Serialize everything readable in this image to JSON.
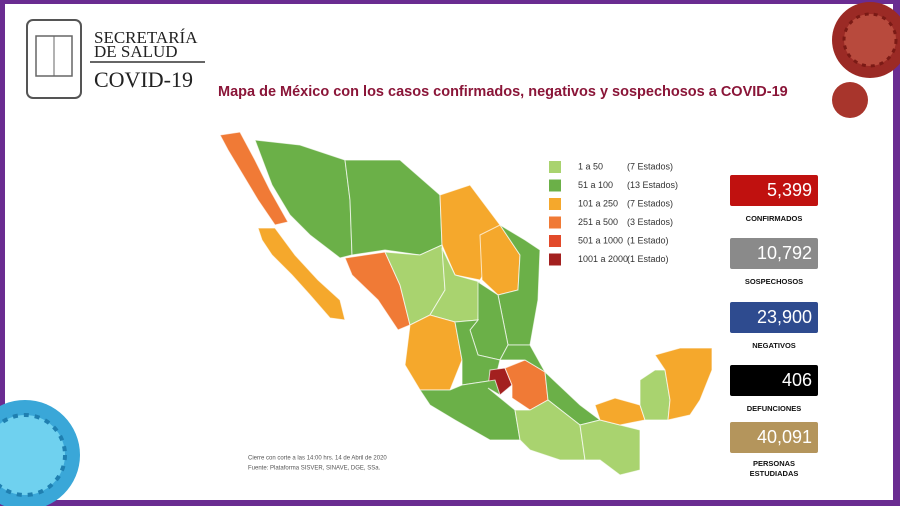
{
  "header": {
    "line1": "SECRETARÍA",
    "line2": "DE SALUD",
    "line3": "COVID-19"
  },
  "map": {
    "title": "Mapa de México con los casos confirmados, negativos y sospechosos a COVID-19",
    "legend": [
      {
        "range": "1 a 50",
        "count": "(7 Estados)",
        "color": "#a9d36f"
      },
      {
        "range": "51 a 100",
        "count": "(13 Estados)",
        "color": "#6bb048"
      },
      {
        "range": "101 a 250",
        "count": "(7 Estados)",
        "color": "#f5a82c"
      },
      {
        "range": "251 a 500",
        "count": "(3 Estados)",
        "color": "#f07a36"
      },
      {
        "range": "501 a 1000",
        "count": "(1 Estado)",
        "color": "#e24a2a"
      },
      {
        "range": "1001 a 2000",
        "count": "(1 Estado)",
        "color": "#a3201f"
      }
    ],
    "note1": "Cierre con corte a las 14:00 hrs. 14 de Abril de 2020",
    "note2": "Fuente: Plataforma SISVER, SINAVE, DGE, SSa."
  },
  "stats": [
    {
      "value": "5,399",
      "label": "CONFIRMADOS",
      "color": "#c0110f"
    },
    {
      "value": "10,792",
      "label": "SOSPECHOSOS",
      "color": "#8a8a8a"
    },
    {
      "value": "23,900",
      "label": "NEGATIVOS",
      "color": "#2e4b8f"
    },
    {
      "value": "406",
      "label": "DEFUNCIONES",
      "color": "#000000"
    },
    {
      "value": "40,091",
      "label": "PERSONAS ESTUDIADAS",
      "color": "#b4955c"
    }
  ]
}
